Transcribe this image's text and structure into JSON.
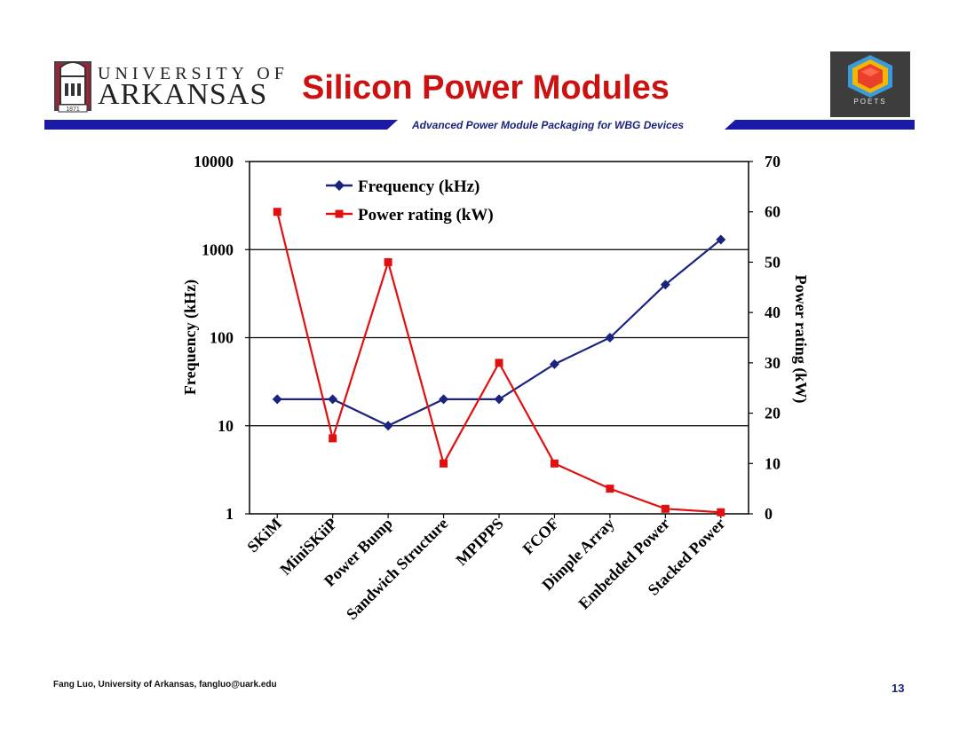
{
  "header": {
    "university_line1": "UNIVERSITY OF",
    "university_line2": "ARKANSAS",
    "crest_year": "1871",
    "title": "Silicon Power Modules",
    "subtitle": "Advanced Power Module Packaging for WBG Devices",
    "poets_label": "POETS"
  },
  "colors": {
    "title": "#cc1111",
    "band": "#1a1aa8",
    "frequency_series": "#1a237e",
    "power_series": "#e01010"
  },
  "chart_data": {
    "type": "line",
    "title": "",
    "categories": [
      "SKiM",
      "MiniSKiiP",
      "Power Bump",
      "Sandwich Structure",
      "MPIPPS",
      "FCOF",
      "Dimple Array",
      "Embedded Power",
      "Stacked Power"
    ],
    "series": [
      {
        "name": "Frequency (kHz)",
        "axis": "left",
        "marker": "diamond",
        "values": [
          20,
          20,
          10,
          20,
          20,
          50,
          100,
          400,
          1300
        ]
      },
      {
        "name": "Power rating (kW)",
        "axis": "right",
        "marker": "square",
        "values": [
          60,
          15,
          50,
          10,
          30,
          10,
          5,
          1,
          0.3
        ]
      }
    ],
    "ylabel": "Frequency (kHz)",
    "y2label": "Power rating (kW)",
    "yscale": "log",
    "ylim": [
      1,
      10000
    ],
    "yticks": [
      "1",
      "10",
      "100",
      "1000",
      "10000"
    ],
    "y2lim": [
      0,
      70
    ],
    "y2ticks": [
      "0",
      "10",
      "20",
      "30",
      "40",
      "50",
      "60",
      "70"
    ],
    "grid": "horizontal major lines on left axis",
    "legend": "top-left inside plot"
  },
  "footer": {
    "author": "Fang Luo, University of Arkansas, fangluo@uark.edu",
    "page": "13"
  }
}
